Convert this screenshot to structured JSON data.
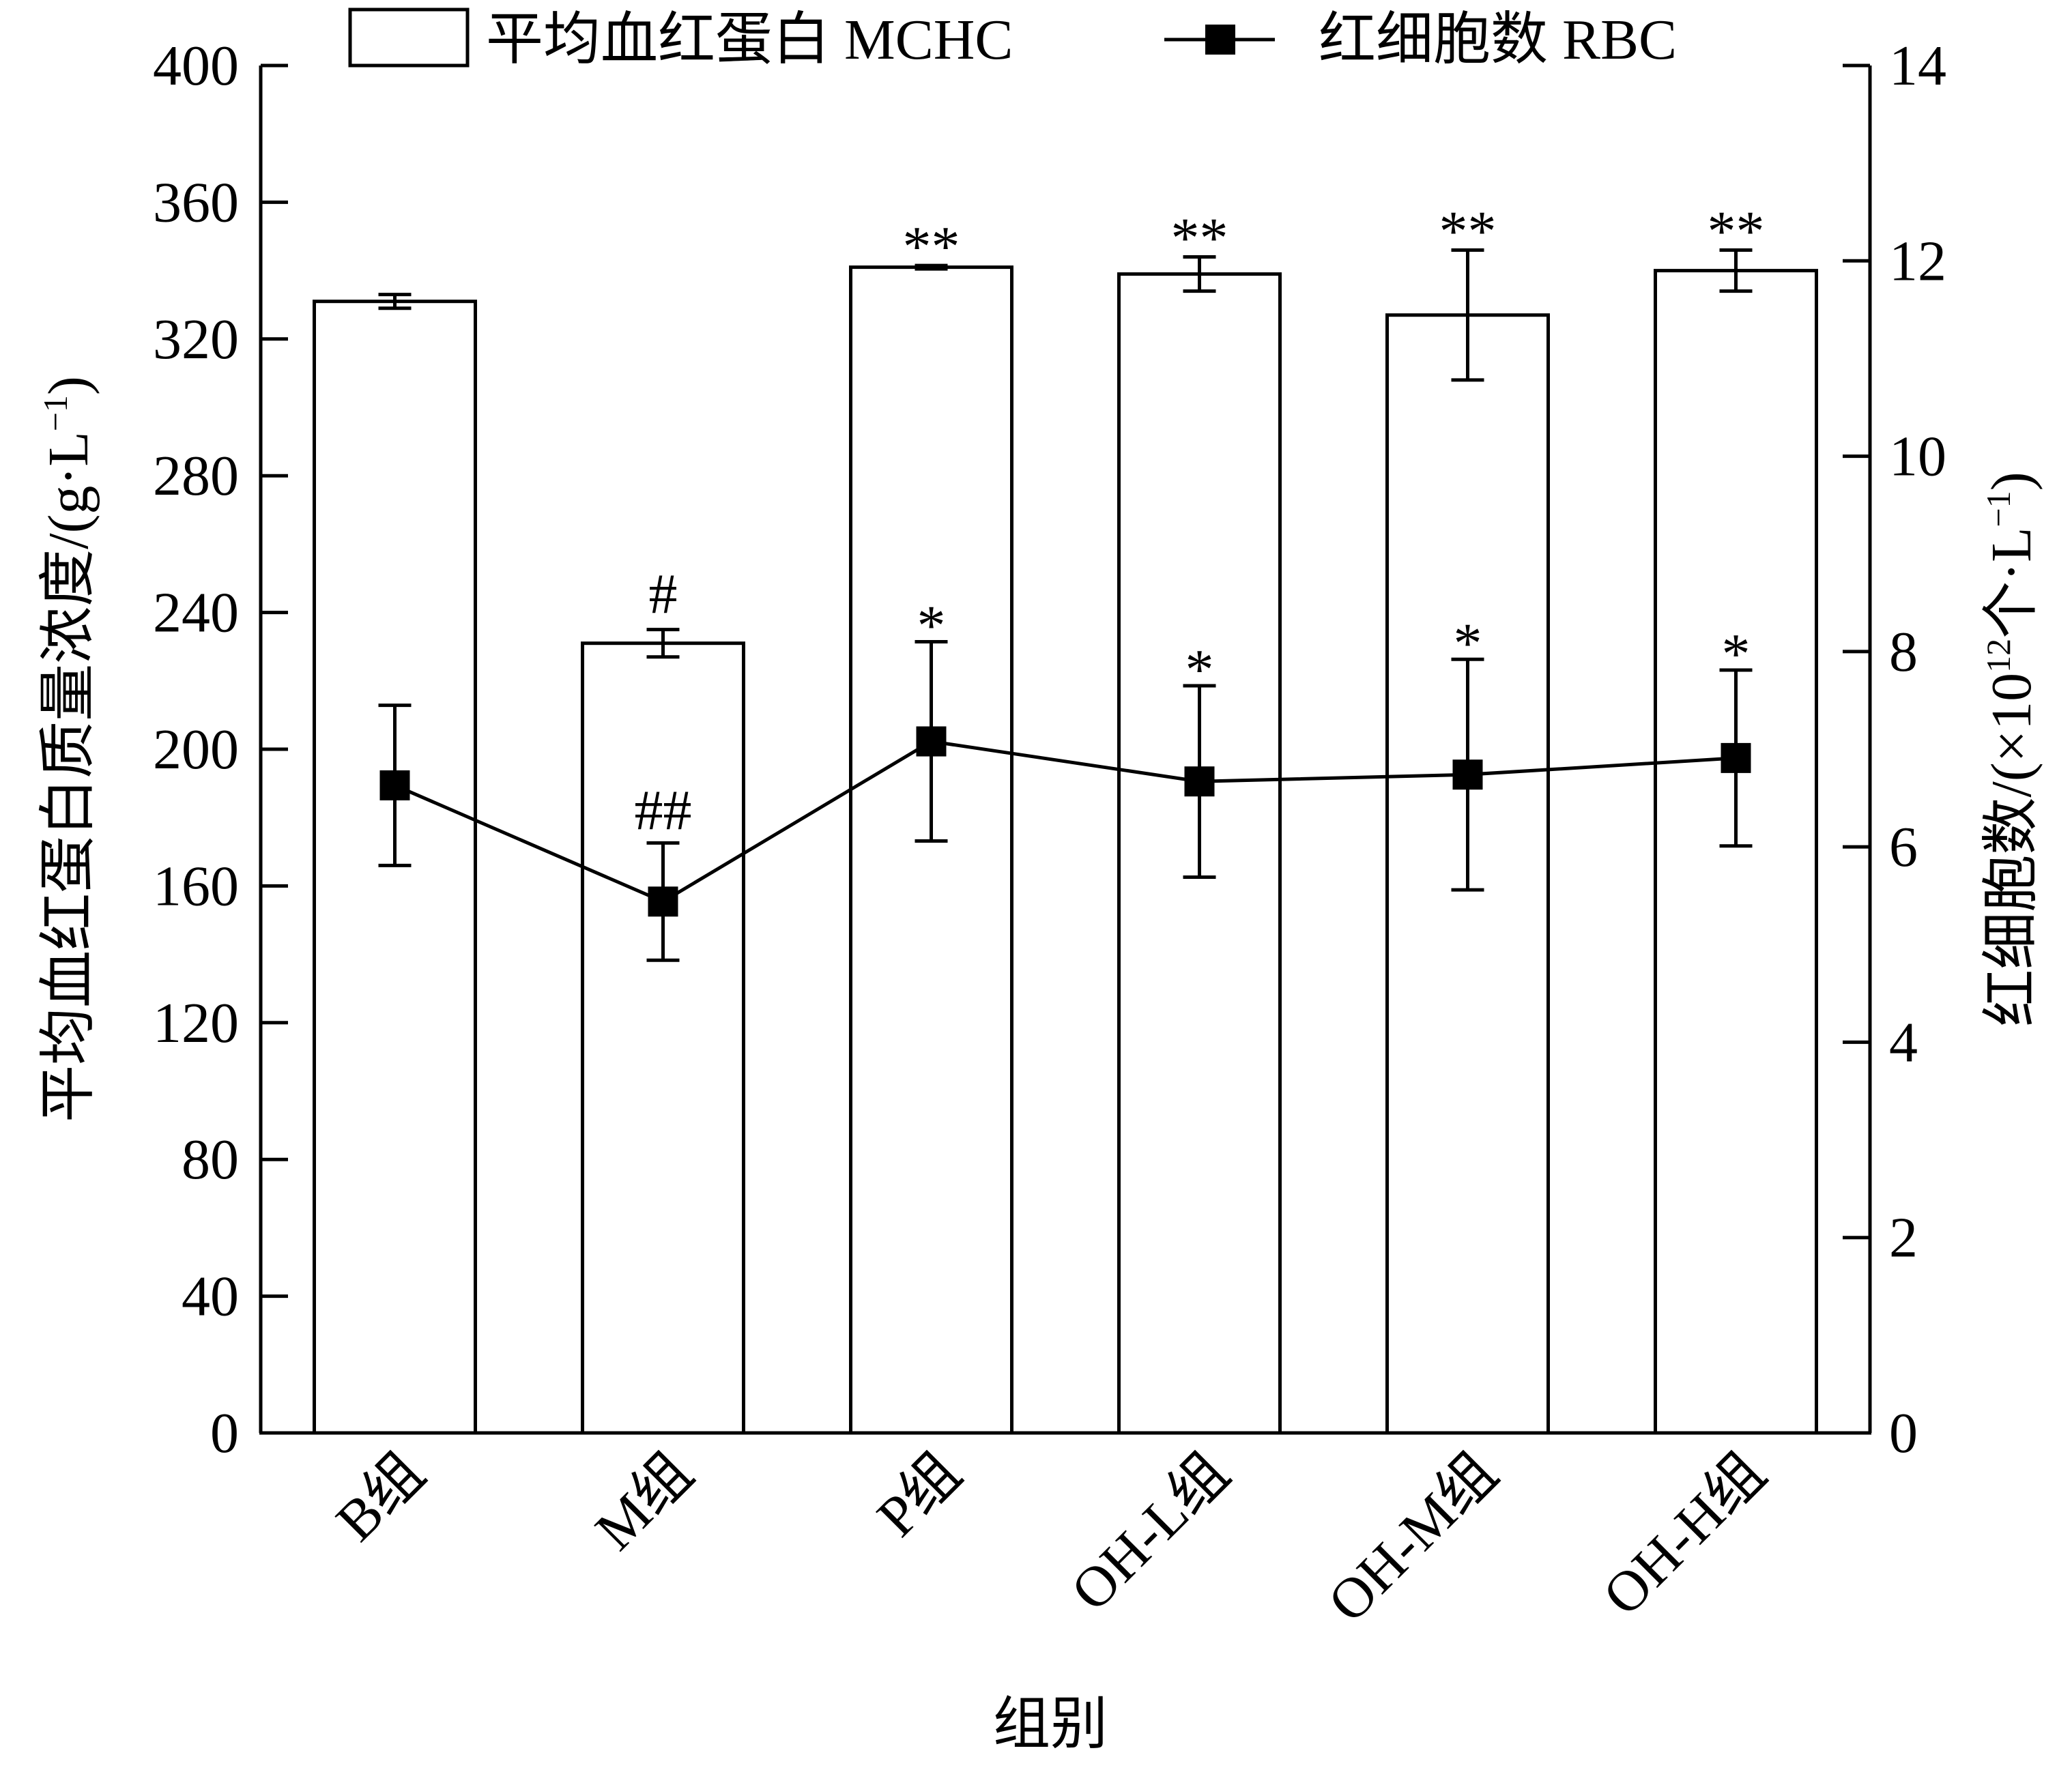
{
  "chart_data": {
    "type": "bar",
    "title": "",
    "xlabel": "组别",
    "ylabel": "平均血红蛋白质量浓度/(g·L",
    "ylabel_sup": "−1",
    "ylabel_close": ")",
    "y2label": "红细胞数/(×10",
    "y2label_sup1": "12",
    "y2label_mid": "个·L",
    "y2label_sup2": "−1",
    "y2label_close": ")",
    "ylim": [
      0,
      400
    ],
    "y_ticks": [
      "0",
      "40",
      "80",
      "120",
      "160",
      "200",
      "240",
      "280",
      "320",
      "360",
      "400"
    ],
    "y2lim": [
      0,
      14
    ],
    "y2_ticks": [
      "0",
      "2",
      "4",
      "6",
      "8",
      "10",
      "12",
      "14"
    ],
    "categories": [
      "B组",
      "M组",
      "P组",
      "OH-L组",
      "OH-M组",
      "OH-H组"
    ],
    "legend_position": "top",
    "series": [
      {
        "name": "平均血红蛋白 MCHC",
        "kind": "bar",
        "axis": "left",
        "values": [
          331,
          231,
          341,
          339,
          327,
          340
        ],
        "errors": [
          2,
          4,
          0.5,
          5,
          19,
          6
        ],
        "annotations": [
          "",
          "#",
          "**",
          "**",
          "**",
          "**"
        ]
      },
      {
        "name": "红细胞数 RBC",
        "kind": "line",
        "marker": "square",
        "axis": "right",
        "values": [
          6.63,
          5.44,
          7.08,
          6.67,
          6.74,
          6.91
        ],
        "errors": [
          0.82,
          0.6,
          1.02,
          0.98,
          1.18,
          0.9
        ],
        "annotations": [
          "",
          "##",
          "*",
          "*",
          "*",
          "*"
        ]
      }
    ]
  }
}
